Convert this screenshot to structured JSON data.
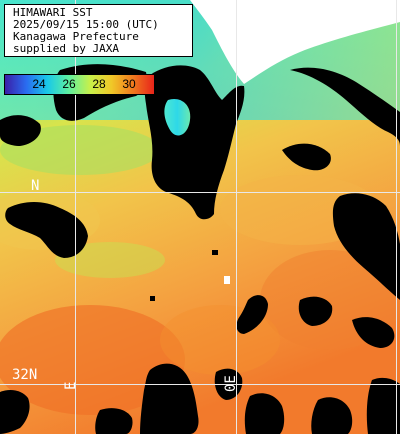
{
  "header": {
    "line1": "HIMAWARI SST",
    "line2": "2025/09/15 15:00 (UTC)",
    "line3": "Kanagawa Prefecture",
    "line4": "supplied by JAXA"
  },
  "colorbar": {
    "ticks": [
      "24",
      "26",
      "28",
      "30"
    ],
    "stops": [
      "#3a1fa8",
      "#2a6cf0",
      "#19c9e8",
      "#5ef0a0",
      "#c8f04a",
      "#f0c828",
      "#f07a1e",
      "#e8241a"
    ]
  },
  "grid_labels": {
    "lat_upper": "N",
    "lat_lower": "32N",
    "lon_left": "E",
    "lon_right": "0E"
  },
  "colors": {
    "land": "#000000",
    "grid": "#e8e8e8",
    "text_overlay": "#ffffff",
    "sea_cool": "#5ce8b4",
    "sea_mid": "#c8e84a",
    "sea_warm": "#f4b040",
    "sea_hot": "#f07a28"
  }
}
